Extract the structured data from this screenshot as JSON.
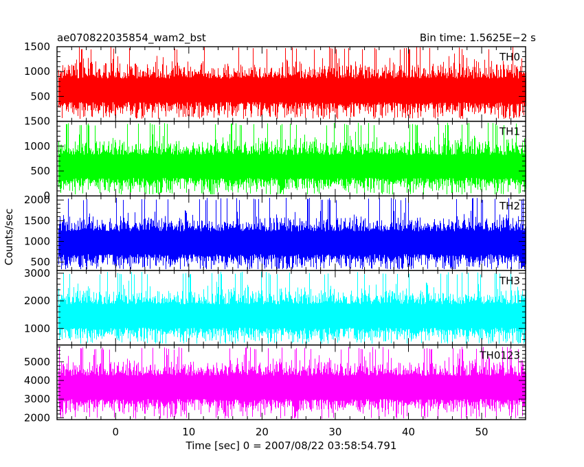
{
  "chart_data": {
    "type": "line",
    "title_left": "ae070822035854_wam2_bst",
    "title_right": "Bin time: 1.5625E−2 s",
    "xlabel": "Time [sec] 0 = 2007/08/22 03:58:54.791",
    "ylabel": "Counts/sec",
    "xlim": [
      -8,
      56
    ],
    "xticks": [
      0,
      10,
      20,
      30,
      40,
      50
    ],
    "x_data_range": [
      -7.9,
      56
    ],
    "bin_time": 0.015625,
    "panels": [
      {
        "name": "TH0",
        "color": "#ff0000",
        "ylim": [
          0,
          1500
        ],
        "yticks": [
          500,
          1000,
          1500
        ],
        "min": 50,
        "max": 1500,
        "mean": 650,
        "spread": 190,
        "spike_rate": 0.06
      },
      {
        "name": "TH1",
        "color": "#00ff00",
        "ylim": [
          0,
          1500
        ],
        "yticks": [
          0,
          500,
          1000,
          1500
        ],
        "min": 30,
        "max": 1470,
        "mean": 620,
        "spread": 185,
        "spike_rate": 0.06
      },
      {
        "name": "TH2",
        "color": "#0000ff",
        "ylim": [
          300,
          2100
        ],
        "yticks": [
          500,
          1000,
          1500,
          2000
        ],
        "min": 330,
        "max": 2060,
        "mean": 1000,
        "spread": 220,
        "spike_rate": 0.06
      },
      {
        "name": "TH3",
        "color": "#00ffff",
        "ylim": [
          400,
          3100
        ],
        "yticks": [
          1000,
          2000,
          3000
        ],
        "min": 450,
        "max": 3050,
        "mean": 1500,
        "spread": 340,
        "spike_rate": 0.06
      },
      {
        "name": "TH0123",
        "color": "#ff00ff",
        "ylim": [
          1900,
          5900
        ],
        "yticks": [
          2000,
          3000,
          4000,
          5000
        ],
        "min": 1950,
        "max": 5800,
        "mean": 3700,
        "spread": 500,
        "spike_rate": 0.06
      }
    ]
  }
}
